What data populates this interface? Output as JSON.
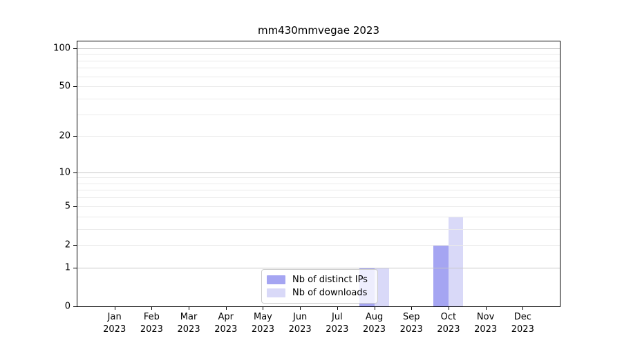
{
  "chart_data": {
    "type": "bar",
    "title": "mm430mmvegae 2023",
    "categories": [
      "Jan",
      "Feb",
      "Mar",
      "Apr",
      "May",
      "Jun",
      "Jul",
      "Aug",
      "Sep",
      "Oct",
      "Nov",
      "Dec"
    ],
    "year_label": "2023",
    "series": [
      {
        "name": "Nb of distinct IPs",
        "color": "#a5a5f2",
        "values": [
          0,
          0,
          0,
          0,
          0,
          0,
          0,
          1,
          0,
          2,
          0,
          0
        ]
      },
      {
        "name": "Nb of downloads",
        "color": "#d9d9f8",
        "values": [
          0,
          0,
          0,
          0,
          0,
          0,
          0,
          1,
          0,
          4,
          0,
          0
        ]
      }
    ],
    "yscale": "log1p",
    "ylim": [
      0,
      113
    ],
    "yticks": [
      0,
      1,
      2,
      5,
      10,
      20,
      50,
      100
    ],
    "grid": "horizontal",
    "grid_major": [
      1,
      10,
      100
    ],
    "grid_minor": [
      2,
      3,
      4,
      5,
      6,
      7,
      8,
      9,
      20,
      30,
      40,
      50,
      60,
      70,
      80,
      90
    ],
    "legend_position": "lower-center",
    "colors": {
      "major_grid": "#c6c6c6",
      "minor_grid": "#eaeaea",
      "spine": "#000000",
      "background": "#ffffff"
    }
  }
}
